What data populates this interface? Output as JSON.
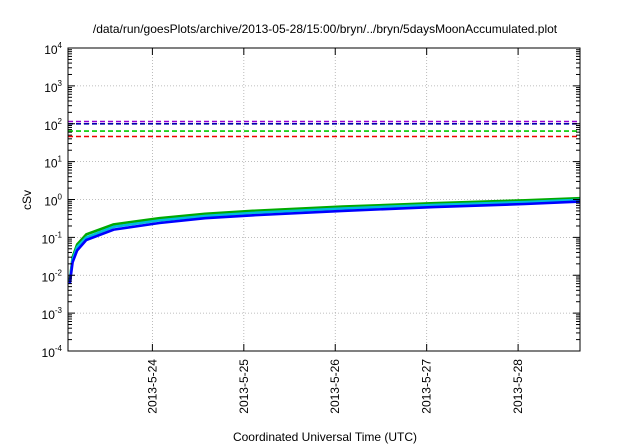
{
  "chart_data": {
    "type": "line",
    "title": "/data/run/goesPlots/archive/2013-05-28/15:00/bryn/../bryn/5daysMoonAccumulated.plot",
    "xlabel": "Coordinated Universal Time (UTC)",
    "ylabel": "cSv",
    "yscale": "log",
    "ylim": [
      0.0001,
      10000
    ],
    "xlim": [
      0,
      5.6
    ],
    "y_ticks": [
      {
        "value": 0.0001,
        "base": "10",
        "exp": "-4"
      },
      {
        "value": 0.001,
        "base": "10",
        "exp": "-3"
      },
      {
        "value": 0.01,
        "base": "10",
        "exp": "-2"
      },
      {
        "value": 0.1,
        "base": "10",
        "exp": "-1"
      },
      {
        "value": 1,
        "base": "10",
        "exp": "0"
      },
      {
        "value": 10,
        "base": "10",
        "exp": "1"
      },
      {
        "value": 100,
        "base": "10",
        "exp": "2"
      },
      {
        "value": 1000,
        "base": "10",
        "exp": "3"
      },
      {
        "value": 10000,
        "base": "10",
        "exp": "4"
      }
    ],
    "x_ticks": [
      {
        "value": 0.923,
        "label": "2013-5-24"
      },
      {
        "value": 1.923,
        "label": "2013-5-25"
      },
      {
        "value": 2.923,
        "label": "2013-5-26"
      },
      {
        "value": 3.923,
        "label": "2013-5-27"
      },
      {
        "value": 4.923,
        "label": "2013-5-28"
      }
    ],
    "grid": true,
    "series": [
      {
        "color": "#00aa00",
        "style": "solid",
        "x": [
          0.02,
          0.05,
          0.1,
          0.2,
          0.5,
          1,
          1.5,
          2,
          3,
          4,
          5,
          5.6
        ],
        "values": [
          0.007,
          0.03,
          0.065,
          0.12,
          0.22,
          0.32,
          0.42,
          0.5,
          0.65,
          0.8,
          0.95,
          1.08
        ]
      },
      {
        "color": "#00bbdd",
        "style": "solid",
        "x": [
          0.02,
          0.05,
          0.1,
          0.2,
          0.5,
          1,
          1.5,
          2,
          3,
          4,
          5,
          5.6
        ],
        "values": [
          0.007,
          0.026,
          0.055,
          0.1,
          0.19,
          0.28,
          0.37,
          0.44,
          0.58,
          0.72,
          0.86,
          0.98
        ]
      },
      {
        "color": "#0000ff",
        "style": "solid",
        "x": [
          0.02,
          0.05,
          0.1,
          0.2,
          0.5,
          1,
          1.5,
          2,
          3,
          4,
          5,
          5.6
        ],
        "values": [
          0.006,
          0.022,
          0.045,
          0.085,
          0.16,
          0.24,
          0.32,
          0.38,
          0.5,
          0.63,
          0.76,
          0.88
        ]
      },
      {
        "color": "#9400d3",
        "style": "dashed",
        "x": [
          0,
          5.6
        ],
        "values": [
          115,
          115
        ]
      },
      {
        "color": "#0000aa",
        "style": "dashed",
        "x": [
          0,
          5.6
        ],
        "values": [
          100,
          100
        ]
      },
      {
        "color": "#00cc00",
        "style": "dashed",
        "x": [
          0,
          5.6
        ],
        "values": [
          64,
          64
        ]
      },
      {
        "color": "#ee0000",
        "style": "dashed",
        "x": [
          0,
          5.6
        ],
        "values": [
          46,
          46
        ]
      }
    ]
  }
}
